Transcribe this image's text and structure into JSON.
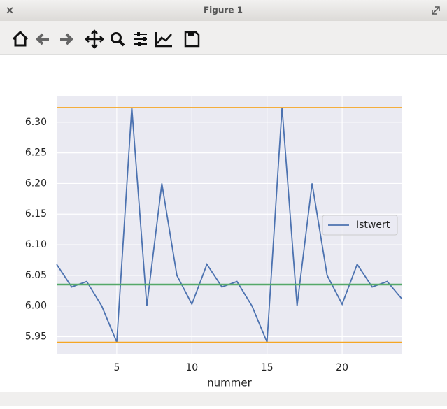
{
  "window": {
    "title": "Figure 1"
  },
  "chart_data": {
    "type": "line",
    "xlabel": "nummer",
    "x": [
      1,
      2,
      3,
      4,
      5,
      6,
      7,
      8,
      9,
      10,
      11,
      12,
      13,
      14,
      15,
      16,
      17,
      18,
      19,
      20,
      21,
      22,
      23,
      24
    ],
    "series": [
      {
        "name": "Istwert",
        "color": "#4c72b0",
        "values": [
          6.068,
          6.031,
          6.04,
          6.0,
          5.941,
          6.324,
          6.0,
          6.2,
          6.05,
          6.003,
          6.068,
          6.031,
          6.04,
          6.0,
          5.941,
          6.324,
          6.0,
          6.2,
          6.05,
          6.003,
          6.068,
          6.031,
          6.04,
          6.011
        ]
      }
    ],
    "hlines": [
      {
        "value": 6.324,
        "color": "#f5a623"
      },
      {
        "value": 5.941,
        "color": "#f5a623"
      },
      {
        "value": 6.035,
        "color": "#55a868"
      }
    ],
    "xlim": [
      1,
      24
    ],
    "ylim": [
      5.922,
      6.342
    ],
    "xticks": [
      5,
      10,
      15,
      20
    ],
    "yticks": [
      5.95,
      {
        "value": 6.0,
        "label": "6.00"
      },
      6.05,
      {
        "value": 6.1,
        "label": "6.10"
      },
      6.15,
      {
        "value": 6.2,
        "label": "6.20"
      },
      6.25,
      {
        "value": 6.3,
        "label": "6.30"
      }
    ],
    "grid": true,
    "legend": "center right"
  }
}
